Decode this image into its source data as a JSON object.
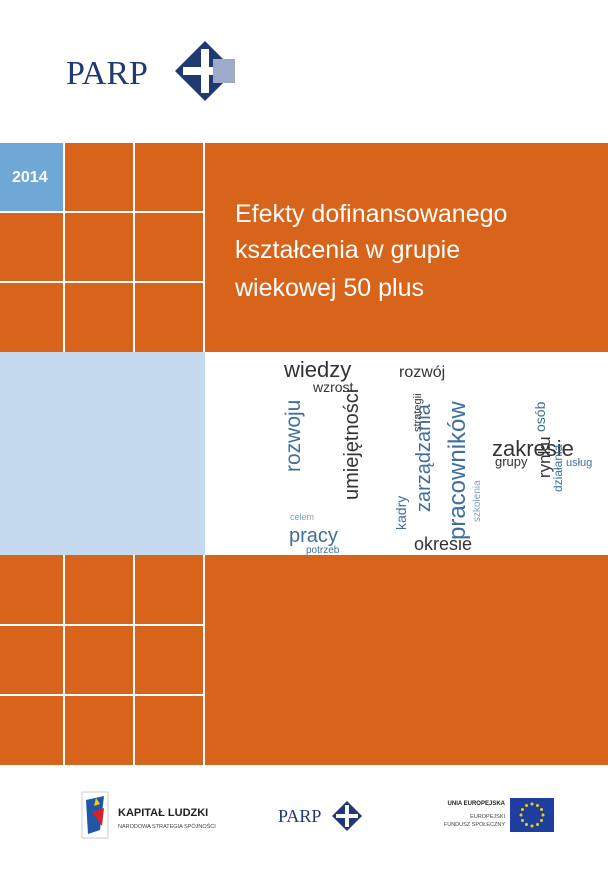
{
  "header": {
    "logo": "PARP"
  },
  "cover": {
    "year": "2014",
    "title": [
      "Efekty dofinansowanego",
      "kształcenia w grupie",
      "wiekowej 50 plus"
    ]
  },
  "word_cloud": {
    "words": [
      "wiedzy",
      "wzrost",
      "rozwoju",
      "umiejętności",
      "pracy",
      "celem",
      "potrzeb",
      "rozwój",
      "strategii",
      "zarządzania",
      "kadry",
      "okresie",
      "pracowników",
      "szkolenia",
      "zakresie",
      "grupy",
      "osób",
      "rynku",
      "działania",
      "usług"
    ]
  },
  "footer": {
    "kapital": "KAPITAŁ LUDZKI",
    "kapital_sub": "NARODOWA STRATEGIA SPÓJNOŚCI",
    "parp": "PARP",
    "ue": "UNIA EUROPEJSKA",
    "ue_sub1": "EUROPEJSKI",
    "ue_sub2": "FUNDUSZ SPOŁECZNY"
  }
}
